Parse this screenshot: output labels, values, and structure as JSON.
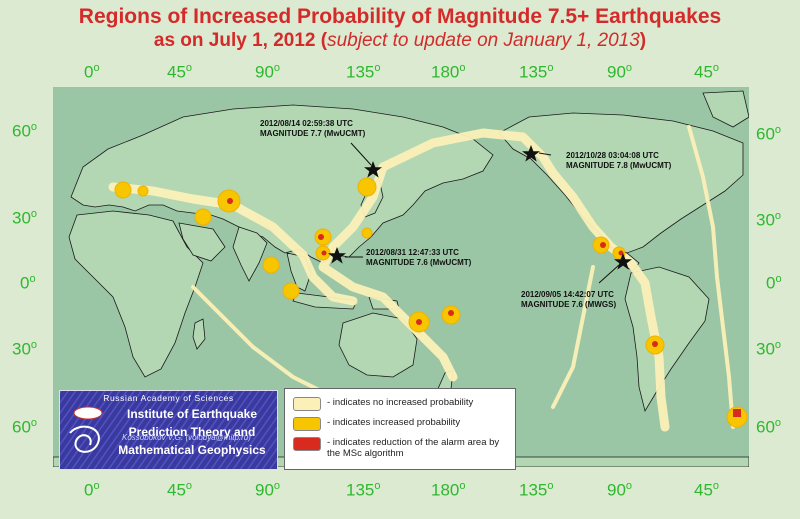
{
  "title": {
    "line1": "Regions of Increased Probability of Magnitude 7.5+ Earthquakes",
    "line2_main": "as on July 1, 2012",
    "line2_paren_open": " (",
    "line2_sub": "subject to update on January 1, 2013",
    "line2_paren_close": ")"
  },
  "axes": {
    "degree_sign": "o",
    "top_longitudes": [
      "0",
      "45",
      "90",
      "135",
      "180",
      "135",
      "90",
      "45"
    ],
    "bottom_longitudes": [
      "0",
      "45",
      "90",
      "135",
      "180",
      "135",
      "90",
      "45"
    ],
    "left_latitudes": [
      "60",
      "30",
      "0",
      "30",
      "60"
    ],
    "right_latitudes": [
      "60",
      "30",
      "0",
      "30",
      "60"
    ]
  },
  "events": [
    {
      "time": "2012/08/14 02:59:38 UTC",
      "magnitude": "MAGNITUDE 7.7 (MwUCMT)"
    },
    {
      "time": "2012/10/28 03:04:08 UTC",
      "magnitude": "MAGNITUDE 7.8 (MwUCMT)"
    },
    {
      "time": "2012/08/31 12:47:33 UTC",
      "magnitude": "MAGNITUDE 7.6 (MwUCMT)"
    },
    {
      "time": "2012/09/05 14:42:07 UTC",
      "magnitude": "MAGNITUDE 7.6 (MWGS)"
    }
  ],
  "logo": {
    "academy": "Russian Academy of Sciences",
    "institute_line1": "Institute of Earthquake",
    "institute_line2": "Prediction Theory and",
    "institute_line3": "Mathematical Geophysics",
    "author": "Kossobokov V.G. (volodya@mitp.ru)"
  },
  "legend": {
    "items": [
      {
        "text": "- indicates no increased probability",
        "color": "#fbf1b8"
      },
      {
        "text": "- indicates increased probability",
        "color": "#f7c600"
      },
      {
        "text": "- indicates reduction of the alarm area by the MSc algorithm",
        "color": "#d82a1e"
      }
    ]
  },
  "colors": {
    "title": "#d42a2a",
    "axis_labels": "#2fb82f",
    "background": "#dbead0",
    "ocean": "#9bc6a5",
    "no_increase": "#fbf1b8",
    "increased": "#f7c600",
    "reduced": "#d82a1e"
  }
}
